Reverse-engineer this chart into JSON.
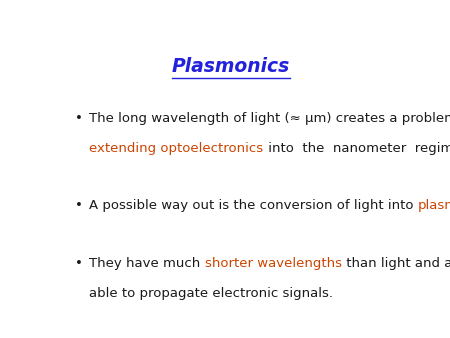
{
  "title": "Plasmonics",
  "title_color": "#2222dd",
  "title_fontsize": 13.5,
  "background_color": "#ffffff",
  "black_color": "#1a1a1a",
  "orange_color": "#cc4400",
  "body_fontsize": 9.5,
  "font_family": "Comic Sans MS",
  "bullets": [
    {
      "lines": [
        [
          {
            "text": "The long wavelength of light (≈ μm) creates a problem for",
            "color": "#1a1a1a"
          }
        ],
        [
          {
            "text": "extending optoelectronics",
            "color": "#cc4400"
          },
          {
            "text": " into  the  nanometer  regime.",
            "color": "#1a1a1a"
          }
        ]
      ]
    },
    {
      "lines": [
        [
          {
            "text": "A possible way out is the conversion of light into ",
            "color": "#1a1a1a"
          },
          {
            "text": "plasmons",
            "color": "#cc4400"
          },
          {
            "text": ".",
            "color": "#1a1a1a"
          }
        ]
      ]
    },
    {
      "lines": [
        [
          {
            "text": "They have much ",
            "color": "#1a1a1a"
          },
          {
            "text": "shorter wavelengths",
            "color": "#cc4400"
          },
          {
            "text": " than light and are",
            "color": "#1a1a1a"
          }
        ],
        [
          {
            "text": "able to propagate electronic signals.",
            "color": "#1a1a1a"
          }
        ]
      ]
    }
  ],
  "bullet_symbol": "•",
  "title_underline": true,
  "fig_width": 4.5,
  "fig_height": 3.38,
  "dpi": 100
}
